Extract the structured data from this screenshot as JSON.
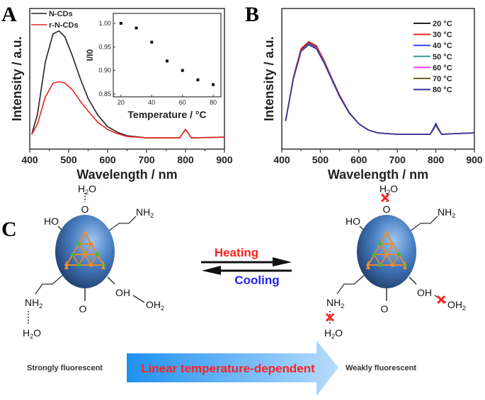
{
  "panels": {
    "a": "A",
    "b": "B",
    "c": "C"
  },
  "chart_data": [
    {
      "type": "line",
      "panel": "A",
      "xlabel": "Wavelength / nm",
      "ylabel": "Intensity / a.u.",
      "xlim": [
        400,
        900
      ],
      "xticks": [
        400,
        500,
        600,
        700,
        800,
        900
      ],
      "yticks": [],
      "x": [
        405,
        420,
        440,
        460,
        475,
        490,
        510,
        530,
        550,
        575,
        600,
        625,
        650,
        700,
        750,
        785,
        795,
        800,
        805,
        815,
        850,
        900
      ],
      "series": [
        {
          "name": "N-CDs",
          "color": "#222222",
          "values": [
            0.105,
            0.25,
            0.62,
            0.82,
            0.84,
            0.8,
            0.66,
            0.5,
            0.36,
            0.24,
            0.16,
            0.12,
            0.095,
            0.08,
            0.08,
            0.08,
            0.12,
            0.14,
            0.12,
            0.08,
            0.082,
            0.085
          ]
        },
        {
          "name": "r-N-CDs",
          "color": "#ee2222",
          "values": [
            0.105,
            0.18,
            0.37,
            0.47,
            0.48,
            0.47,
            0.42,
            0.34,
            0.27,
            0.19,
            0.14,
            0.11,
            0.09,
            0.08,
            0.08,
            0.08,
            0.12,
            0.14,
            0.12,
            0.08,
            0.082,
            0.085
          ]
        }
      ],
      "legend": "top-left",
      "inset": {
        "type": "scatter",
        "xlabel": "Temperature / °C",
        "ylabel": "I/I0",
        "xlim": [
          15,
          85
        ],
        "ylim": [
          0.844,
          1.021
        ],
        "xticks": [
          20,
          40,
          60,
          80
        ],
        "yticks": [
          "0.85",
          "0.90",
          "0.95",
          "1.00"
        ],
        "x": [
          20,
          30,
          40,
          50,
          60,
          70,
          80
        ],
        "y": [
          1.0,
          0.99,
          0.96,
          0.92,
          0.9,
          0.88,
          0.87
        ]
      }
    },
    {
      "type": "line",
      "panel": "B",
      "xlabel": "Wavelength / nm",
      "ylabel": "Intensity / a.u.",
      "xlim": [
        400,
        900
      ],
      "xticks": [
        400,
        500,
        600,
        700,
        800,
        900
      ],
      "yticks": [],
      "legend": "top-right",
      "x": [
        410,
        430,
        450,
        470,
        490,
        510,
        530,
        550,
        575,
        600,
        625,
        650,
        700,
        750,
        785,
        795,
        800,
        805,
        815,
        850,
        900
      ],
      "series": [
        {
          "name": "20 °C",
          "color": "#222222",
          "values": [
            0.2,
            0.5,
            0.705,
            0.755,
            0.725,
            0.625,
            0.5,
            0.38,
            0.26,
            0.18,
            0.135,
            0.115,
            0.105,
            0.105,
            0.105,
            0.15,
            0.18,
            0.15,
            0.105,
            0.11,
            0.115
          ]
        },
        {
          "name": "30 °C",
          "color": "#ee2222",
          "values": [
            0.2,
            0.51,
            0.715,
            0.765,
            0.735,
            0.63,
            0.505,
            0.385,
            0.262,
            0.18,
            0.135,
            0.115,
            0.105,
            0.105,
            0.105,
            0.15,
            0.18,
            0.15,
            0.105,
            0.11,
            0.115
          ]
        },
        {
          "name": "40 °C",
          "color": "#3344ee",
          "values": [
            0.2,
            0.5,
            0.7,
            0.75,
            0.72,
            0.62,
            0.5,
            0.38,
            0.26,
            0.18,
            0.135,
            0.115,
            0.105,
            0.105,
            0.105,
            0.155,
            0.185,
            0.155,
            0.105,
            0.11,
            0.115
          ]
        },
        {
          "name": "50 °C",
          "color": "#339999",
          "values": [
            0.2,
            0.5,
            0.7,
            0.748,
            0.718,
            0.618,
            0.498,
            0.378,
            0.258,
            0.18,
            0.135,
            0.115,
            0.105,
            0.105,
            0.105,
            0.145,
            0.175,
            0.145,
            0.105,
            0.11,
            0.115
          ]
        },
        {
          "name": "60 °C",
          "color": "#ff33ff",
          "values": [
            0.2,
            0.5,
            0.7,
            0.746,
            0.716,
            0.616,
            0.496,
            0.376,
            0.258,
            0.18,
            0.135,
            0.115,
            0.105,
            0.105,
            0.105,
            0.148,
            0.178,
            0.148,
            0.105,
            0.11,
            0.115
          ]
        },
        {
          "name": "70 °C",
          "color": "#666622",
          "values": [
            0.2,
            0.5,
            0.698,
            0.744,
            0.714,
            0.614,
            0.494,
            0.375,
            0.257,
            0.18,
            0.135,
            0.115,
            0.105,
            0.105,
            0.105,
            0.145,
            0.172,
            0.145,
            0.105,
            0.11,
            0.115
          ]
        },
        {
          "name": "80 °C",
          "color": "#333399",
          "values": [
            0.2,
            0.5,
            0.695,
            0.742,
            0.712,
            0.612,
            0.492,
            0.374,
            0.256,
            0.18,
            0.135,
            0.115,
            0.105,
            0.105,
            0.105,
            0.15,
            0.18,
            0.15,
            0.105,
            0.11,
            0.115
          ]
        }
      ]
    }
  ],
  "scheme": {
    "heating": "Heating",
    "cooling": "Cooling",
    "left_label": "Strongly fluorescent",
    "right_label": "Weakly fluorescent",
    "arrow_label": "Linear temperature-dependent",
    "colors": {
      "heating": "#ff2020",
      "cooling": "#2020ff",
      "arrow_label": "#ff2020",
      "sphere": "#3a6fb5",
      "break_mark": "#ff2020"
    },
    "groups": {
      "h2o": "H",
      "h2o_2": "2",
      "h2o_o": "O",
      "o": "O",
      "ho": "HO",
      "oh": "OH",
      "nh": "NH",
      "nh_2": "2",
      "oh2": "OH",
      "oh2_2": "2"
    }
  }
}
